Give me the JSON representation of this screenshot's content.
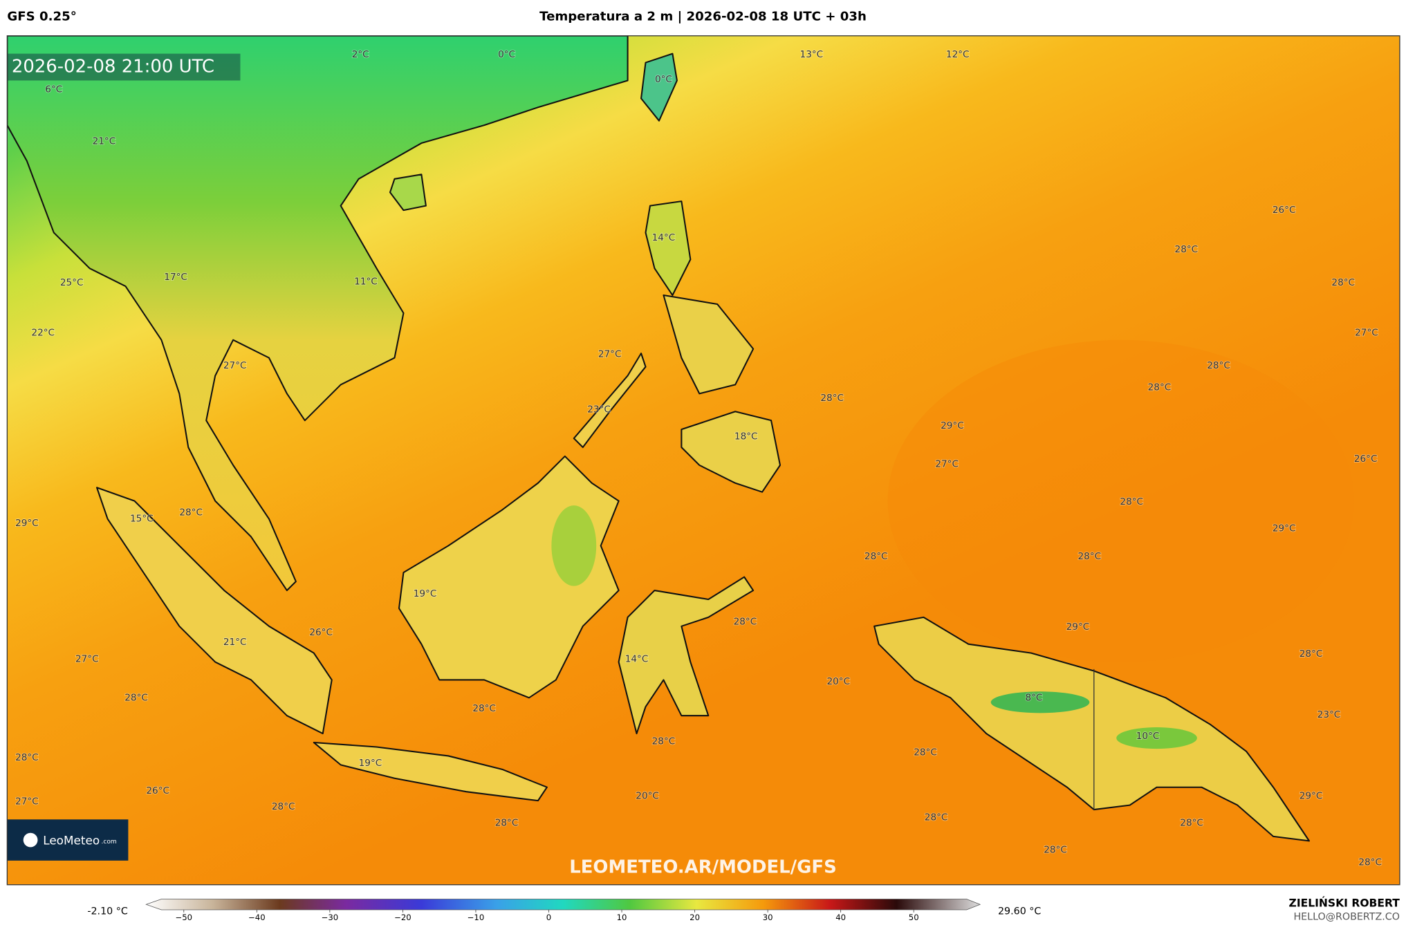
{
  "header": {
    "model": "GFS 0.25°",
    "title": "Temperatura a 2 m | 2026-02-08 18 UTC + 03h"
  },
  "map": {
    "timestamp": "2026-02-08 21:00 UTC",
    "labels": [
      "2°C",
      "0°C",
      "13°C",
      "12°C",
      "6°C",
      "0°C",
      "21°C",
      "26°C",
      "14°C",
      "28°C",
      "25°C",
      "17°C",
      "11°C",
      "28°C",
      "22°C",
      "27°C",
      "27°C",
      "27°C",
      "28°C",
      "28°C",
      "28°C",
      "23°C",
      "29°C",
      "18°C",
      "27°C",
      "26°C",
      "28°C",
      "15°C",
      "28°C",
      "29°C",
      "29°C",
      "28°C",
      "28°C",
      "19°C",
      "28°C",
      "29°C",
      "26°C",
      "21°C",
      "14°C",
      "27°C",
      "28°C",
      "20°C",
      "8°C",
      "28°C",
      "28°C",
      "23°C",
      "10°C",
      "28°C",
      "28°C",
      "28°C",
      "19°C",
      "26°C",
      "20°C",
      "29°C",
      "27°C",
      "28°C",
      "28°C",
      "28°C",
      "28°C",
      "28°C",
      "28°C"
    ],
    "watermark": "LEOMETEO.AR/MODEL/GFS",
    "logo": {
      "name": "LeoMeteo",
      "suffix": ".com"
    }
  },
  "colorbar": {
    "min_label": "-2.10 °C",
    "max_label": "29.60 °C",
    "ticks": [
      "−50",
      "−40",
      "−30",
      "−20",
      "−10",
      "0",
      "10",
      "20",
      "30",
      "40",
      "50"
    ]
  },
  "credits": {
    "author": "ZIELIŃSKI ROBERT",
    "email": "HELLO@ROBERTZ.CO"
  }
}
